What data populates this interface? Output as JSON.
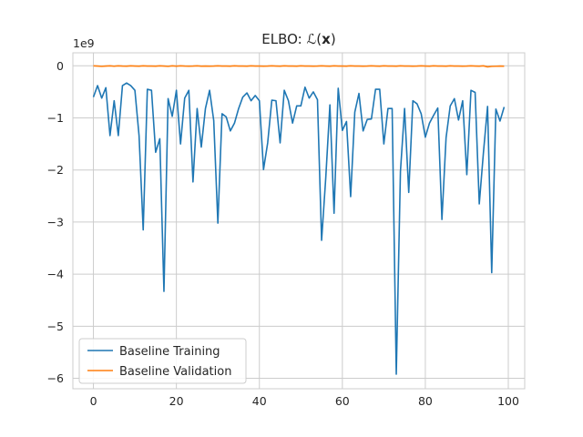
{
  "chart_data": {
    "type": "line",
    "title": "ELBO: ℒ(x)",
    "title_prefix": "ELBO: ℒ(",
    "title_bold": "x",
    "title_suffix": ")",
    "xlabel": "",
    "ylabel": "",
    "y_offset_label": "1e9",
    "xlim": [
      -4.95,
      103.95
    ],
    "ylim": [
      -6.2,
      0.25
    ],
    "x_ticks": [
      0,
      20,
      40,
      60,
      80,
      100
    ],
    "x_tick_labels": [
      "0",
      "20",
      "40",
      "60",
      "80",
      "100"
    ],
    "y_ticks": [
      0,
      -1,
      -2,
      -3,
      -4,
      -5,
      -6
    ],
    "y_tick_labels": [
      "0",
      "−1",
      "−2",
      "−3",
      "−4",
      "−5",
      "−6"
    ],
    "grid": true,
    "legend_position": "lower-left",
    "series": [
      {
        "name": "Baseline Training",
        "color": "#1f77b4",
        "values": [
          -0.6,
          -0.38,
          -0.62,
          -0.42,
          -1.34,
          -0.67,
          -1.34,
          -0.38,
          -0.33,
          -0.38,
          -0.47,
          -1.34,
          -3.15,
          -0.45,
          -0.47,
          -1.66,
          -1.4,
          -4.33,
          -0.63,
          -0.97,
          -0.47,
          -1.5,
          -0.62,
          -0.47,
          -2.23,
          -0.82,
          -1.56,
          -0.82,
          -0.47,
          -1.05,
          -3.02,
          -0.92,
          -0.98,
          -1.25,
          -1.1,
          -0.82,
          -0.6,
          -0.52,
          -0.67,
          -0.57,
          -0.67,
          -1.99,
          -1.48,
          -0.66,
          -0.67,
          -1.48,
          -0.47,
          -0.67,
          -1.1,
          -0.77,
          -0.77,
          -0.41,
          -0.62,
          -0.5,
          -0.65,
          -3.35,
          -2.15,
          -0.75,
          -2.83,
          -0.43,
          -1.24,
          -1.07,
          -2.51,
          -0.89,
          -0.53,
          -1.25,
          -1.03,
          -1.02,
          -0.45,
          -0.45,
          -1.5,
          -0.82,
          -0.82,
          -5.92,
          -2.03,
          -0.82,
          -2.43,
          -0.67,
          -0.73,
          -0.92,
          -1.37,
          -1.1,
          -0.95,
          -0.81,
          -2.95,
          -1.38,
          -0.77,
          -0.63,
          -1.04,
          -0.67,
          -2.09,
          -0.47,
          -0.51,
          -2.65,
          -1.67,
          -0.78,
          -3.97,
          -0.83,
          -1.06,
          -0.79
        ]
      },
      {
        "name": "Baseline Validation",
        "color": "#ff7f0e",
        "values": [
          0.0,
          -0.005,
          -0.01,
          -0.005,
          0.0,
          -0.008,
          0.0,
          -0.005,
          -0.006,
          0.0,
          -0.004,
          -0.007,
          0.0,
          -0.005,
          -0.004,
          -0.006,
          0.0,
          -0.004,
          -0.01,
          0.0,
          -0.007,
          0.0,
          -0.004,
          -0.006,
          -0.005,
          0.0,
          -0.006,
          -0.004,
          -0.007,
          -0.005,
          0.0,
          -0.005,
          -0.004,
          -0.006,
          0.0,
          -0.005,
          -0.004,
          -0.006,
          0.0,
          -0.005,
          -0.004,
          -0.006,
          -0.005,
          0.0,
          -0.004,
          -0.007,
          0.0,
          -0.005,
          -0.004,
          -0.006,
          0.0,
          -0.005,
          -0.004,
          -0.006,
          -0.005,
          0.0,
          -0.004,
          -0.007,
          0.0,
          -0.005,
          -0.004,
          -0.006,
          0.0,
          -0.005,
          -0.004,
          -0.006,
          -0.005,
          0.0,
          -0.004,
          -0.007,
          0.0,
          -0.005,
          -0.004,
          -0.006,
          0.0,
          -0.005,
          -0.004,
          -0.006,
          -0.005,
          0.0,
          -0.004,
          -0.007,
          0.0,
          -0.005,
          -0.004,
          -0.006,
          0.0,
          -0.005,
          -0.004,
          -0.006,
          -0.005,
          0.0,
          -0.004,
          -0.007,
          0.0,
          -0.02,
          -0.01,
          -0.008,
          -0.005,
          -0.006
        ]
      }
    ]
  }
}
